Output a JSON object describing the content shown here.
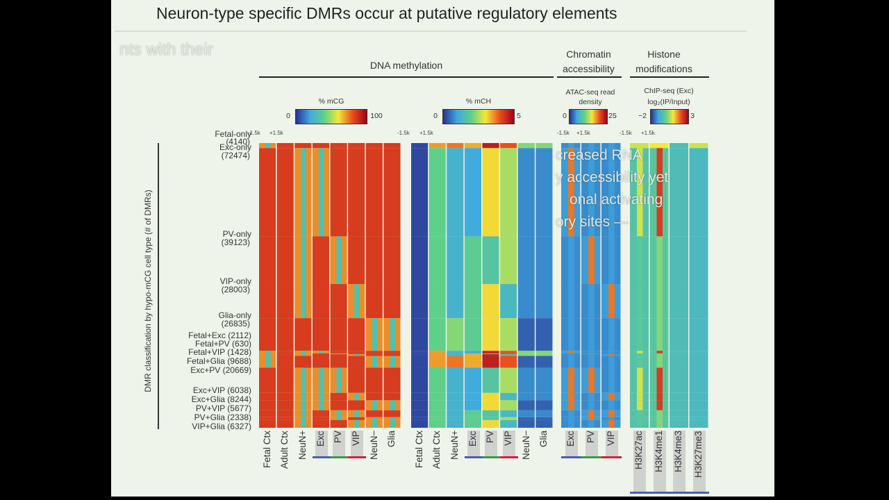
{
  "slide": {
    "title": "Neuron-type specific DMRs occur at putative regulatory elements",
    "ghost_text": [
      "nts with their",
      "ory sites —",
      "creased RNA",
      "y accessibility yet",
      "onal activating"
    ]
  },
  "chart_data": {
    "type": "heatmap",
    "ylabel": "DMR classification by hypo-mCG cell type (# of DMRs)",
    "sections": [
      {
        "label": "DNA methylation"
      },
      {
        "label": "Chromatin accessibility"
      },
      {
        "label": "Histone modifications"
      }
    ],
    "window_ticks": [
      "-1.5k",
      "+1.5k"
    ],
    "row_groups": [
      {
        "label": "Fetal-only",
        "count": "(4140)",
        "n": 4140
      },
      {
        "label": "Exc-only",
        "count": "(72474)",
        "n": 72474
      },
      {
        "label": "PV-only",
        "count": "(39123)",
        "n": 39123
      },
      {
        "label": "VIP-only",
        "count": "(28003)",
        "n": 28003
      },
      {
        "label": "Glia-only",
        "count": "(26835)",
        "n": 26835
      },
      {
        "label": "Fetal+Exc (2112)",
        "n": 2112
      },
      {
        "label": "Fetal+PV (630)",
        "n": 630
      },
      {
        "label": "Fetal+VIP (1428)",
        "n": 1428
      },
      {
        "label": "Fetal+Glia (9688)",
        "n": 9688
      },
      {
        "label": "Exc+PV (20669)",
        "n": 20669
      },
      {
        "label": "Exc+VIP (6038)",
        "n": 6038
      },
      {
        "label": "Exc+Glia (8244)",
        "n": 8244
      },
      {
        "label": "PV+VIP (5677)",
        "n": 5677
      },
      {
        "label": "PV+Glia (2338)",
        "n": 2338
      },
      {
        "label": "VIP+Glia (6327)",
        "n": 6327
      }
    ],
    "panels": [
      {
        "id": "mcg",
        "colorbar_title": "% mCG",
        "range": [
          "0",
          "100"
        ],
        "columns": [
          "Fetal Ctx",
          "Adult Ctx",
          "NeuN+",
          "Exc",
          "PV",
          "VIP",
          "NeuN−",
          "Glia"
        ]
      },
      {
        "id": "mch",
        "colorbar_title": "% mCH",
        "range": [
          "0",
          "5"
        ],
        "columns": [
          "Fetal Ctx",
          "Adult Ctx",
          "NeuN+",
          "Exc",
          "PV",
          "VIP",
          "NeuN−",
          "Glia"
        ]
      },
      {
        "id": "atac",
        "colorbar_title": "ATAC-seq read density",
        "range": [
          "0",
          "25"
        ],
        "columns": [
          "Exc",
          "PV",
          "VIP"
        ]
      },
      {
        "id": "chip",
        "colorbar_title": "ChIP-seq (Exc) log₂(IP/Input)",
        "range": [
          "−2",
          "3"
        ],
        "columns": [
          "H3K27ac",
          "H3K4me1",
          "H3K4me3",
          "H3K27me3"
        ]
      }
    ],
    "cell_type_colors": {
      "Exc": "#4a5fb0",
      "PV": "#3a9a4a",
      "VIP": "#d02040"
    },
    "colormap": [
      "#2b2f8f",
      "#3fa9e0",
      "#5fd08a",
      "#f2e83a",
      "#e8501e",
      "#a0001a"
    ]
  }
}
